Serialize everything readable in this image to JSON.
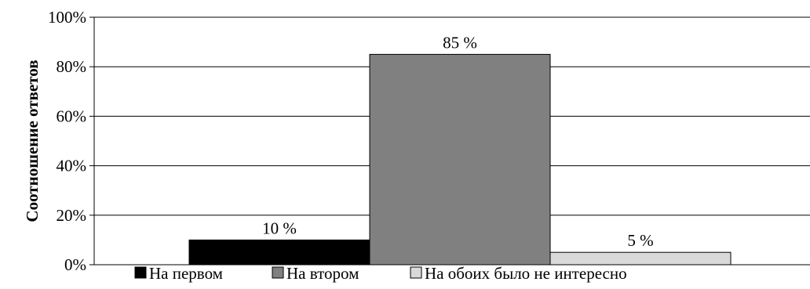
{
  "chart_data": {
    "type": "bar",
    "title": "",
    "xlabel": "",
    "ylabel": "Соотношение ответов",
    "ylim": [
      0,
      100
    ],
    "yticks": [
      "0%",
      "20%",
      "40%",
      "60%",
      "80%",
      "100%"
    ],
    "grid": true,
    "legend_position": "bottom",
    "series": [
      {
        "name": "На первом",
        "value": 10,
        "label": "10 %",
        "color": "#000000"
      },
      {
        "name": "На втором",
        "value": 85,
        "label": "85 %",
        "color": "#808080"
      },
      {
        "name": "На обоих было не интересно",
        "value": 5,
        "label": "5 %",
        "color": "#d9d9d9"
      }
    ]
  }
}
